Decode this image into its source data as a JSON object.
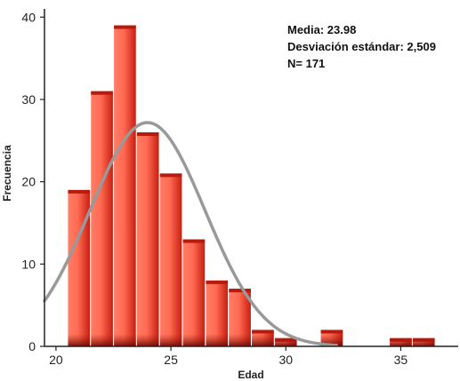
{
  "chart_data": {
    "type": "bar",
    "subtype": "histogram",
    "xlabel": "Edad",
    "ylabel": "Frecuencia",
    "xlim": [
      19.5,
      37.5
    ],
    "ylim": [
      0,
      41
    ],
    "x_ticks": [
      20,
      25,
      30,
      35
    ],
    "y_ticks": [
      0,
      10,
      20,
      30,
      40
    ],
    "bin_width": 1,
    "bins": [
      {
        "start": 20.5,
        "end": 21.5,
        "value": 19
      },
      {
        "start": 21.5,
        "end": 22.5,
        "value": 31
      },
      {
        "start": 22.5,
        "end": 23.5,
        "value": 39
      },
      {
        "start": 23.5,
        "end": 24.5,
        "value": 26
      },
      {
        "start": 24.5,
        "end": 25.5,
        "value": 21
      },
      {
        "start": 25.5,
        "end": 26.5,
        "value": 13
      },
      {
        "start": 26.5,
        "end": 27.5,
        "value": 8
      },
      {
        "start": 27.5,
        "end": 28.5,
        "value": 7
      },
      {
        "start": 28.5,
        "end": 29.5,
        "value": 2
      },
      {
        "start": 29.5,
        "end": 30.5,
        "value": 1
      },
      {
        "start": 30.5,
        "end": 31.5,
        "value": 0
      },
      {
        "start": 31.5,
        "end": 32.5,
        "value": 2
      },
      {
        "start": 32.5,
        "end": 33.5,
        "value": 0
      },
      {
        "start": 33.5,
        "end": 34.5,
        "value": 0
      },
      {
        "start": 34.5,
        "end": 35.5,
        "value": 1
      },
      {
        "start": 35.5,
        "end": 36.5,
        "value": 1
      }
    ],
    "normal_curve": {
      "mean": 23.98,
      "std": 2.509,
      "n": 171,
      "x_range": [
        19.5,
        32.2
      ]
    },
    "annotations": [
      "Media: 23.98",
      "Desviación estándar: 2,509",
      "N= 171"
    ],
    "grid": false,
    "colors": {
      "bar_light": "#ff8a72",
      "bar_mid": "#e8412b",
      "bar_dark": "#8a0f08",
      "curve": "#999999",
      "axis": "#222222"
    }
  }
}
